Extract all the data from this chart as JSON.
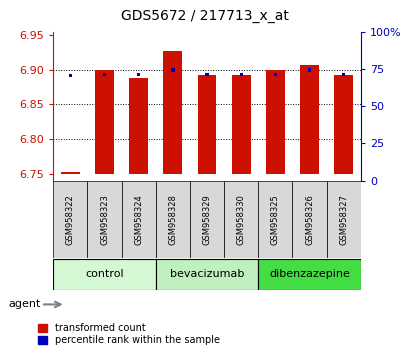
{
  "title": "GDS5672 / 217713_x_at",
  "samples": [
    "GSM958322",
    "GSM958323",
    "GSM958324",
    "GSM958328",
    "GSM958329",
    "GSM958330",
    "GSM958325",
    "GSM958326",
    "GSM958327"
  ],
  "red_bar_bottom": 6.75,
  "red_bar_tops": [
    6.752,
    6.9,
    6.888,
    6.928,
    6.893,
    6.893,
    6.9,
    6.907,
    6.892
  ],
  "blue_yvals": [
    6.892,
    6.893,
    6.893,
    6.9,
    6.893,
    6.893,
    6.893,
    6.9,
    6.893
  ],
  "ylim_left": [
    6.74,
    6.955
  ],
  "ylim_right": [
    0,
    100
  ],
  "yticks_left": [
    6.75,
    6.8,
    6.85,
    6.9,
    6.95
  ],
  "yticks_right": [
    0,
    25,
    50,
    75,
    100
  ],
  "ytick_labels_right": [
    "0",
    "25",
    "50",
    "75",
    "100%"
  ],
  "hgrid_lines": [
    6.8,
    6.85,
    6.9
  ],
  "groups": [
    {
      "label": "control",
      "indices": [
        0,
        1,
        2
      ],
      "color": "#d4f7d4"
    },
    {
      "label": "bevacizumab",
      "indices": [
        3,
        4,
        5
      ],
      "color": "#c0f0c0"
    },
    {
      "label": "dibenzazepine",
      "indices": [
        6,
        7,
        8
      ],
      "color": "#44dd44"
    }
  ],
  "bar_color": "#cc1100",
  "blue_color": "#0000bb",
  "left_axis_color": "#cc1100",
  "right_axis_color": "#0000bb",
  "agent_label": "agent",
  "legend_red": "transformed count",
  "legend_blue": "percentile rank within the sample",
  "bar_width": 0.55,
  "blue_bar_width": 0.1,
  "background_color": "#ffffff",
  "plot_bg_color": "#ffffff",
  "sample_cell_color": "#d8d8d8"
}
